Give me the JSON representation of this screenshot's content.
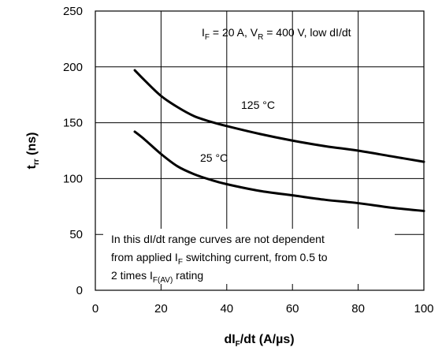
{
  "chart_data": {
    "type": "line",
    "title": "",
    "xlabel": {
      "main": "dI",
      "sub": "F",
      "rest": "/dt (A/µs)"
    },
    "ylabel": {
      "main": "t",
      "sub": "rr",
      "rest": " (ns)"
    },
    "xlim": [
      0,
      100
    ],
    "ylim": [
      0,
      250
    ],
    "xticks": [
      0,
      20,
      40,
      60,
      80,
      100
    ],
    "yticks": [
      0,
      50,
      100,
      150,
      200,
      250
    ],
    "grid": true,
    "series": [
      {
        "name": "125 °C",
        "points": [
          [
            12,
            197
          ],
          [
            15,
            188
          ],
          [
            20,
            174
          ],
          [
            25,
            164
          ],
          [
            30,
            156
          ],
          [
            35,
            151
          ],
          [
            40,
            147
          ],
          [
            50,
            140
          ],
          [
            60,
            134
          ],
          [
            70,
            129
          ],
          [
            80,
            125
          ],
          [
            90,
            120
          ],
          [
            100,
            115
          ]
        ]
      },
      {
        "name": "25 °C",
        "points": [
          [
            12,
            142
          ],
          [
            15,
            135
          ],
          [
            20,
            122
          ],
          [
            25,
            111
          ],
          [
            30,
            104
          ],
          [
            35,
            99
          ],
          [
            40,
            95
          ],
          [
            50,
            89
          ],
          [
            60,
            85
          ],
          [
            70,
            81
          ],
          [
            80,
            78
          ],
          [
            90,
            74
          ],
          [
            100,
            71
          ]
        ]
      }
    ],
    "annotations": {
      "conditions": {
        "i": "I",
        "i_sub": "F",
        "i_val": " = 20 A, V",
        "v_sub": "R",
        "rest": " = 400 V, low dI/dt"
      },
      "label_125": "125 °C",
      "label_25": "25 °C",
      "note_line1": "In this dI/dt range curves are not dependent",
      "note_line2": {
        "pre": "from applied I",
        "sub": "F",
        "post": " switching current, from 0.5 to"
      },
      "note_line3": {
        "pre": "2 times I",
        "sub": "F(AV)",
        "post": " rating"
      }
    }
  }
}
